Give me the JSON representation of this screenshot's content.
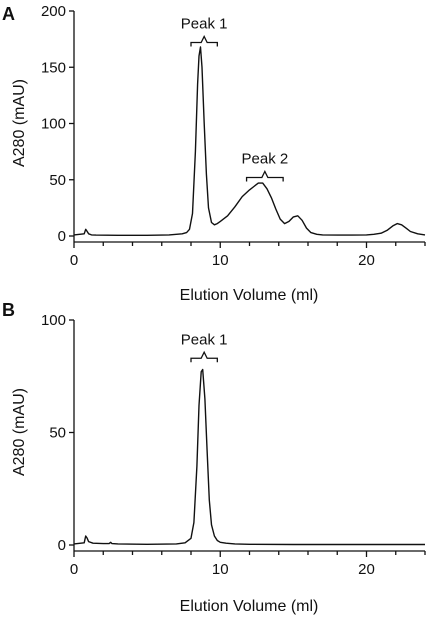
{
  "chart_data": [
    {
      "panel": "A",
      "type": "line",
      "xlabel": "Elution Volume (ml)",
      "ylabel": "A280 (mAU)",
      "xlim": [
        0,
        24
      ],
      "ylim": [
        0,
        200
      ],
      "xticks": [
        0,
        10,
        20
      ],
      "yticks": [
        0,
        50,
        100,
        150,
        200
      ],
      "grid": false,
      "annotations": [
        {
          "text": "Peak 1",
          "x_start": 8.0,
          "x_end": 9.8,
          "y": 172
        },
        {
          "text": "Peak 2",
          "x_start": 11.8,
          "x_end": 14.3,
          "y": 52
        }
      ],
      "series": [
        {
          "x": [
            0,
            0.7,
            0.8,
            0.9,
            1.0,
            1.2,
            1.5,
            3,
            5,
            6.5,
            7.0,
            7.4,
            7.7,
            7.9,
            8.1,
            8.3,
            8.45,
            8.55,
            8.65,
            8.75,
            8.9,
            9.05,
            9.2,
            9.4,
            9.6,
            9.8,
            10.0,
            10.5,
            11.0,
            11.5,
            12.0,
            12.3,
            12.6,
            12.9,
            13.2,
            13.5,
            13.8,
            14.1,
            14.4,
            14.7,
            15.0,
            15.3,
            15.6,
            15.9,
            16.2,
            16.6,
            17.0,
            18,
            19,
            20,
            20.5,
            21.0,
            21.4,
            21.8,
            22.1,
            22.4,
            22.7,
            23.0,
            23.5,
            24
          ],
          "y": [
            1,
            2,
            6,
            4,
            2,
            1,
            0.8,
            0.6,
            0.6,
            1,
            1.5,
            2,
            3,
            6,
            20,
            75,
            135,
            160,
            168,
            150,
            100,
            55,
            25,
            12,
            10,
            11,
            13,
            18,
            26,
            35,
            41,
            44,
            47,
            47,
            42,
            34,
            24,
            15,
            11,
            13,
            17,
            18,
            14,
            7,
            3,
            1.5,
            1,
            0.8,
            0.8,
            1,
            1.5,
            2.5,
            5,
            9,
            11,
            10,
            7,
            4,
            2,
            1
          ]
        }
      ]
    },
    {
      "panel": "B",
      "type": "line",
      "xlabel": "Elution Volume (ml)",
      "ylabel": "A280 (mAU)",
      "xlim": [
        0,
        24
      ],
      "ylim": [
        0,
        100
      ],
      "xticks": [
        0,
        10,
        20
      ],
      "yticks": [
        0,
        50,
        100
      ],
      "grid": false,
      "annotations": [
        {
          "text": "Peak 1",
          "x_start": 8.0,
          "x_end": 9.8,
          "y": 83
        }
      ],
      "series": [
        {
          "x": [
            0,
            0.7,
            0.8,
            0.9,
            1.0,
            1.3,
            2.0,
            2.4,
            2.5,
            2.6,
            3.0,
            5,
            7,
            7.6,
            8.0,
            8.2,
            8.4,
            8.55,
            8.7,
            8.8,
            8.95,
            9.1,
            9.25,
            9.4,
            9.6,
            9.8,
            10.0,
            10.4,
            11,
            12,
            15,
            20,
            24
          ],
          "y": [
            0.5,
            1,
            4,
            3,
            1.5,
            0.8,
            0.6,
            0.6,
            1.2,
            0.6,
            0.5,
            0.3,
            0.5,
            1,
            3,
            10,
            35,
            62,
            77,
            78,
            65,
            42,
            20,
            9,
            4,
            2,
            1.2,
            0.8,
            0.5,
            0.3,
            0.2,
            0.2,
            0.2
          ]
        }
      ]
    }
  ]
}
